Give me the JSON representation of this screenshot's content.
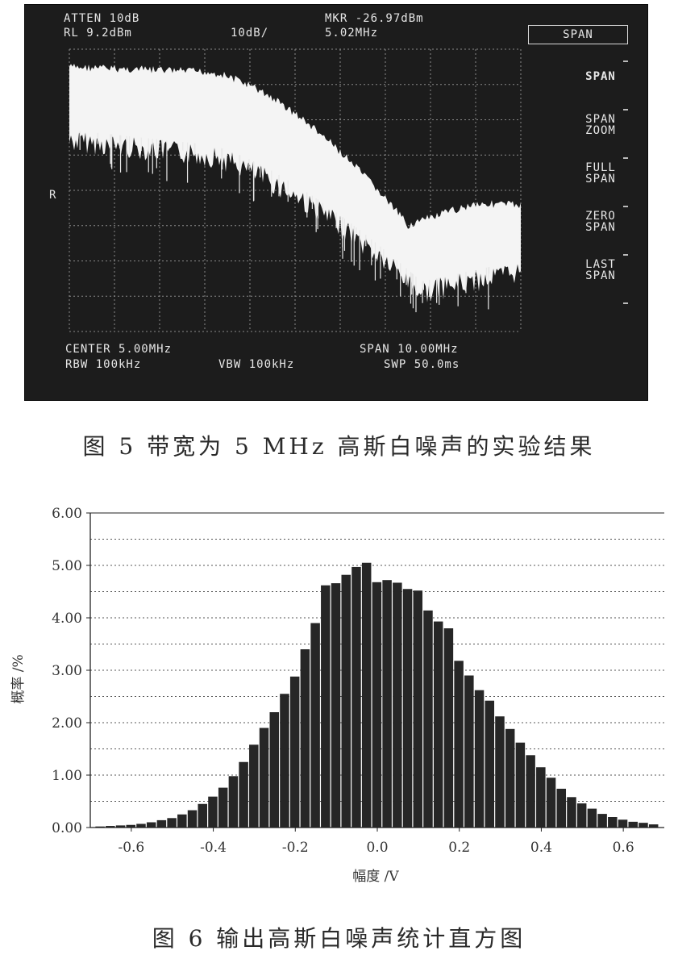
{
  "figure5": {
    "header": {
      "atten": "ATTEN 10dB",
      "rl": "RL 9.2dBm",
      "scale": "10dB/",
      "marker": "MKR -26.97dBm",
      "marker_freq": "5.02MHz"
    },
    "footer": {
      "center": "CENTER 5.00MHz",
      "span": "SPAN 10.00MHz",
      "rbw": "RBW 100kHz",
      "vbw": "VBW 100kHz",
      "swp": "SWP 50.0ms"
    },
    "side_label": "R",
    "softkeys": {
      "active": "SPAN",
      "items": [
        "SPAN",
        "SPAN\nZOOM",
        "FULL\nSPAN",
        "ZERO\nSPAN",
        "LAST\nSPAN"
      ]
    },
    "caption": "图 5  带宽为 5 MHz 高斯白噪声的实验结果"
  },
  "chart_data": {
    "type": "bar",
    "title": "",
    "xlabel": "幅度 /V",
    "ylabel": "概率 /%",
    "xlim": [
      -0.7,
      0.7
    ],
    "ylim": [
      0,
      6
    ],
    "y_ticks": [
      "0.00",
      "1.00",
      "2.00",
      "3.00",
      "4.00",
      "5.00",
      "6.00"
    ],
    "x_ticks": [
      "-0.6",
      "-0.4",
      "-0.2",
      "0.0",
      "0.2",
      "0.4",
      "0.6"
    ],
    "grid": "horizontal dotted",
    "bin_width": 0.025,
    "x": [
      -0.675,
      -0.65,
      -0.625,
      -0.6,
      -0.575,
      -0.55,
      -0.525,
      -0.5,
      -0.475,
      -0.45,
      -0.425,
      -0.4,
      -0.375,
      -0.35,
      -0.325,
      -0.3,
      -0.275,
      -0.25,
      -0.225,
      -0.2,
      -0.175,
      -0.15,
      -0.125,
      -0.1,
      -0.075,
      -0.05,
      -0.025,
      0.0,
      0.025,
      0.05,
      0.075,
      0.1,
      0.125,
      0.15,
      0.175,
      0.2,
      0.225,
      0.25,
      0.275,
      0.3,
      0.325,
      0.35,
      0.375,
      0.4,
      0.425,
      0.45,
      0.475,
      0.5,
      0.525,
      0.55,
      0.575,
      0.6,
      0.625,
      0.65,
      0.675
    ],
    "values": [
      0.02,
      0.03,
      0.04,
      0.05,
      0.07,
      0.1,
      0.14,
      0.18,
      0.25,
      0.33,
      0.45,
      0.59,
      0.76,
      0.98,
      1.25,
      1.58,
      1.9,
      2.2,
      2.55,
      2.88,
      3.4,
      3.9,
      4.62,
      4.66,
      4.82,
      4.97,
      5.05,
      4.68,
      4.72,
      4.67,
      4.55,
      4.52,
      4.14,
      3.93,
      3.8,
      3.18,
      2.9,
      2.62,
      2.42,
      2.12,
      1.88,
      1.62,
      1.38,
      1.15,
      0.95,
      0.74,
      0.58,
      0.46,
      0.36,
      0.26,
      0.2,
      0.15,
      0.11,
      0.09,
      0.06
    ],
    "caption": "图 6  输出高斯白噪声统计直方图"
  }
}
